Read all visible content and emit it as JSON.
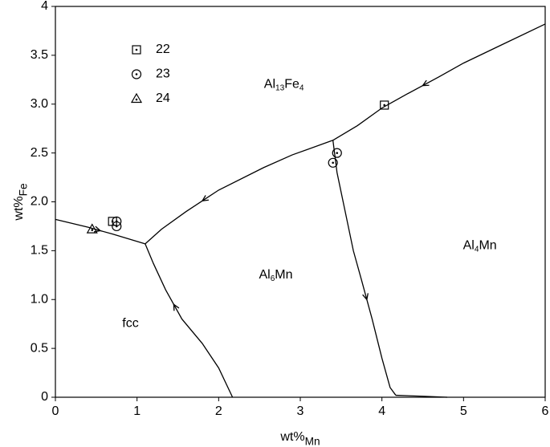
{
  "chart_data": {
    "type": "scatter",
    "x_label": [
      "wt%",
      "Mn"
    ],
    "y_label": [
      "wt%",
      "Fe"
    ],
    "xlim": [
      0,
      6
    ],
    "ylim": [
      0,
      4
    ],
    "xticks": [
      0,
      1,
      2,
      3,
      4,
      5,
      6
    ],
    "yticks": [
      0,
      0.5,
      {
        "value": 1,
        "label": "1.0"
      },
      1.5,
      {
        "value": 2,
        "label": "2.0"
      },
      2.5,
      {
        "value": 3,
        "label": "3.0"
      },
      3.5,
      4
    ],
    "color": "#000000",
    "series": [
      {
        "name": "22",
        "marker": "square",
        "x": [
          0.7,
          4.03
        ],
        "y": [
          1.8,
          2.99
        ]
      },
      {
        "name": "23",
        "marker": "circle",
        "x": [
          0.75,
          0.75,
          3.4,
          3.45
        ],
        "y": [
          1.8,
          1.75,
          2.4,
          2.5
        ]
      },
      {
        "name": "24",
        "marker": "triangle",
        "x": [
          0.45
        ],
        "y": [
          1.72
        ]
      }
    ],
    "boundaries": [
      {
        "arrow": true,
        "x": [
          0,
          0.4,
          0.7,
          1.1
        ],
        "y": [
          1.82,
          1.74,
          1.67,
          1.57
        ]
      },
      {
        "arrow": true,
        "x": [
          2.17,
          2.0,
          1.8,
          1.55,
          1.35,
          1.2,
          1.1
        ],
        "y": [
          0,
          0.3,
          0.55,
          0.8,
          1.1,
          1.37,
          1.57
        ]
      },
      {
        "arrow": true,
        "x": [
          3.4,
          2.9,
          2.55,
          2.0,
          1.6,
          1.3,
          1.1
        ],
        "y": [
          2.63,
          2.48,
          2.35,
          2.12,
          1.9,
          1.72,
          1.57
        ]
      },
      {
        "arrow": true,
        "x": [
          6,
          5.5,
          5.0,
          4.7,
          4.3,
          4.0,
          3.7,
          3.4
        ],
        "y": [
          3.82,
          3.62,
          3.42,
          3.28,
          3.1,
          2.96,
          2.78,
          2.63
        ]
      },
      {
        "arrow": true,
        "x": [
          3.4,
          3.45,
          3.55,
          3.65,
          3.75,
          3.88,
          4.0,
          4.1,
          4.17
        ],
        "y": [
          2.63,
          2.3,
          1.9,
          1.5,
          1.2,
          0.8,
          0.4,
          0.1,
          0.02
        ]
      },
      {
        "arrow": false,
        "x": [
          4.17,
          4.5,
          4.8
        ],
        "y": [
          0.02,
          0.01,
          0
        ]
      }
    ],
    "regions": [
      {
        "parts": [
          "Al",
          "13",
          "Fe",
          "4"
        ],
        "x": 2.8,
        "y": 3.2
      },
      {
        "parts": [
          "Al",
          "4",
          "Mn"
        ],
        "x": 5.2,
        "y": 1.55
      },
      {
        "parts": [
          "Al",
          "6",
          "Mn"
        ],
        "x": 2.7,
        "y": 1.25
      },
      {
        "parts": [
          "fcc"
        ],
        "x": 0.92,
        "y": 0.75
      }
    ]
  }
}
